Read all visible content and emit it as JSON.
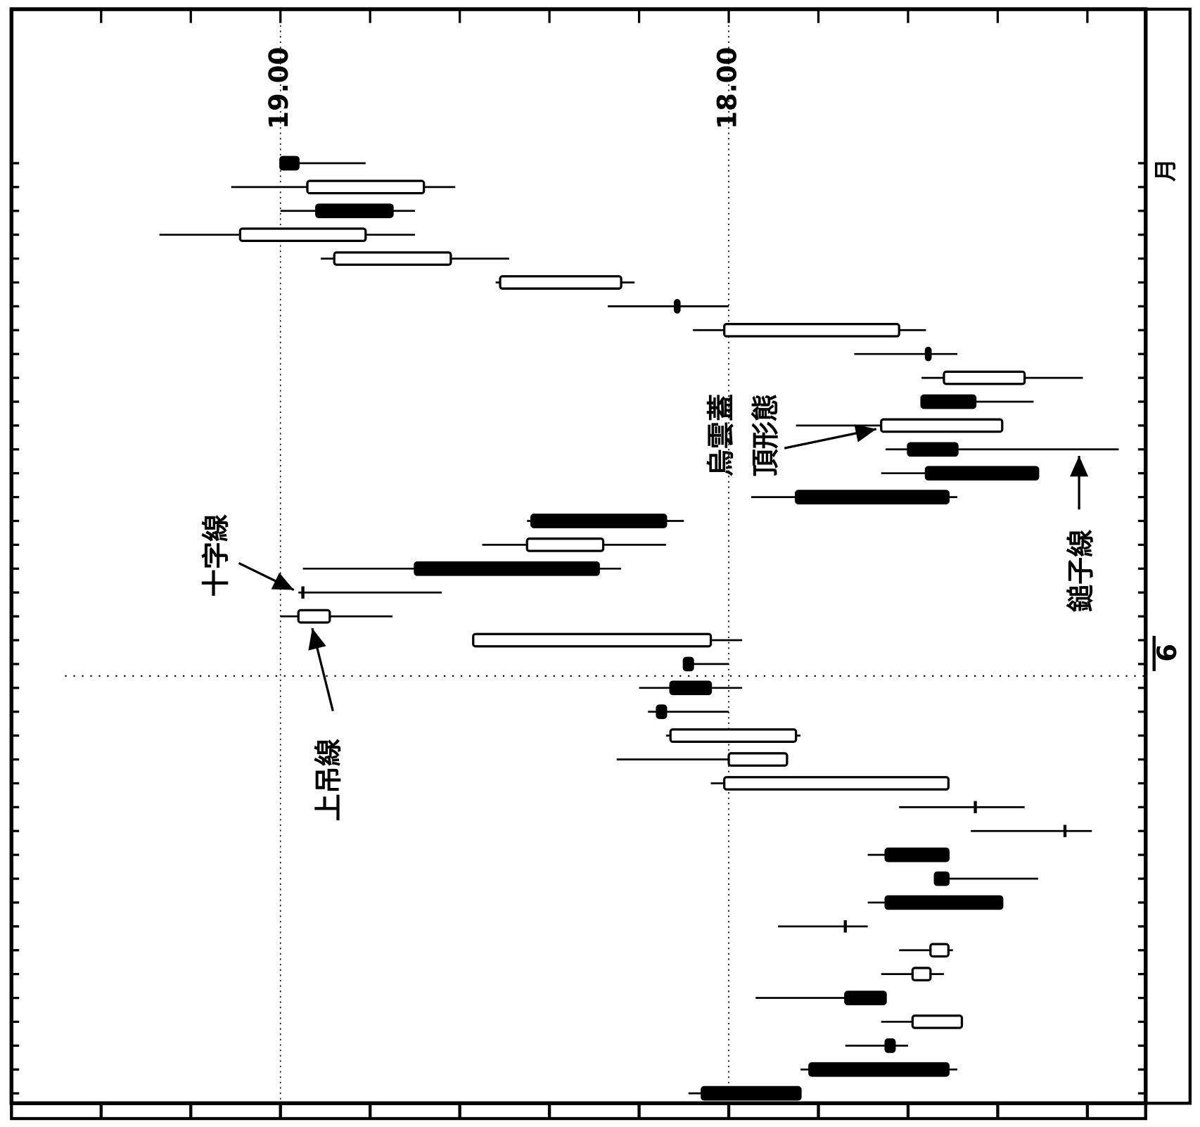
{
  "chart_data": {
    "type": "candlestick",
    "orientation": "horizontal",
    "categories": [
      null,
      null,
      null,
      null,
      null,
      null,
      null,
      null,
      null,
      null,
      null,
      null,
      null,
      null,
      null,
      null,
      null,
      null,
      null,
      null,
      null,
      null,
      null,
      null,
      null,
      null,
      null,
      null,
      null,
      null,
      null,
      null,
      null,
      null,
      null,
      null,
      null,
      null,
      null,
      null
    ],
    "open": [
      19.0,
      18.68,
      18.92,
      18.81,
      18.62,
      18.24,
      18.12,
      17.62,
      17.56,
      17.34,
      17.57,
      17.39,
      17.6,
      17.56,
      17.85,
      18.44,
      18.28,
      18.7,
      18.95,
      18.89,
      18.04,
      18.1,
      18.13,
      18.16,
      17.85,
      17.87,
      17.51,
      17.45,
      17.25,
      17.65,
      17.54,
      17.65,
      17.74,
      17.51,
      17.55,
      17.74,
      17.48,
      17.65,
      17.82,
      18.06
    ],
    "high": [
      19.0,
      19.11,
      19.0,
      19.27,
      18.91,
      18.52,
      18.27,
      18.08,
      17.72,
      17.57,
      17.57,
      17.85,
      17.65,
      17.66,
      17.95,
      18.45,
      18.55,
      18.95,
      18.96,
      19.0,
      18.57,
      18.1,
      18.2,
      18.18,
      18.14,
      18.25,
      18.04,
      17.62,
      17.46,
      17.69,
      17.54,
      17.69,
      17.89,
      17.62,
      17.66,
      17.94,
      17.66,
      17.74,
      17.84,
      18.09
    ],
    "low": [
      18.81,
      18.61,
      18.7,
      18.7,
      18.49,
      18.21,
      18.0,
      17.56,
      17.49,
      17.21,
      17.32,
      17.39,
      17.13,
      17.31,
      17.49,
      18.1,
      18.14,
      18.24,
      18.64,
      18.75,
      17.97,
      18.0,
      17.97,
      18.0,
      17.84,
      17.87,
      17.51,
      17.34,
      17.19,
      17.51,
      17.31,
      17.39,
      17.69,
      17.5,
      17.52,
      17.65,
      17.48,
      17.6,
      17.49,
      17.84
    ],
    "close": [
      18.96,
      18.94,
      18.75,
      19.09,
      18.88,
      18.51,
      18.11,
      18.01,
      17.55,
      17.52,
      17.45,
      17.66,
      17.49,
      17.31,
      17.51,
      18.14,
      18.45,
      18.29,
      18.95,
      18.96,
      18.57,
      18.08,
      18.04,
      18.14,
      18.13,
      18.0,
      18.01,
      17.45,
      17.25,
      17.51,
      17.51,
      17.39,
      17.74,
      17.55,
      17.59,
      17.65,
      17.59,
      17.63,
      17.51,
      17.84
    ],
    "xlim": [
      19.6,
      17.07
    ],
    "xticks": [
      {
        "value": 19,
        "label": "19.00"
      },
      {
        "value": 18,
        "label": "18.00"
      }
    ],
    "xminorticks": [
      19.4,
      19.2,
      18.8,
      18.6,
      18.4,
      18.2,
      17.8,
      17.6,
      17.4,
      17.2
    ],
    "grid": true,
    "up_color": "#ffffff",
    "down_color": "#000000",
    "month_labels": [
      "月",
      "6"
    ],
    "annotations": {
      "doji": "十字線",
      "hanging_man": "上吊線",
      "dark_cloud": [
        "烏雲蓋",
        "頂形態"
      ],
      "hammer": "鎚子線"
    }
  }
}
